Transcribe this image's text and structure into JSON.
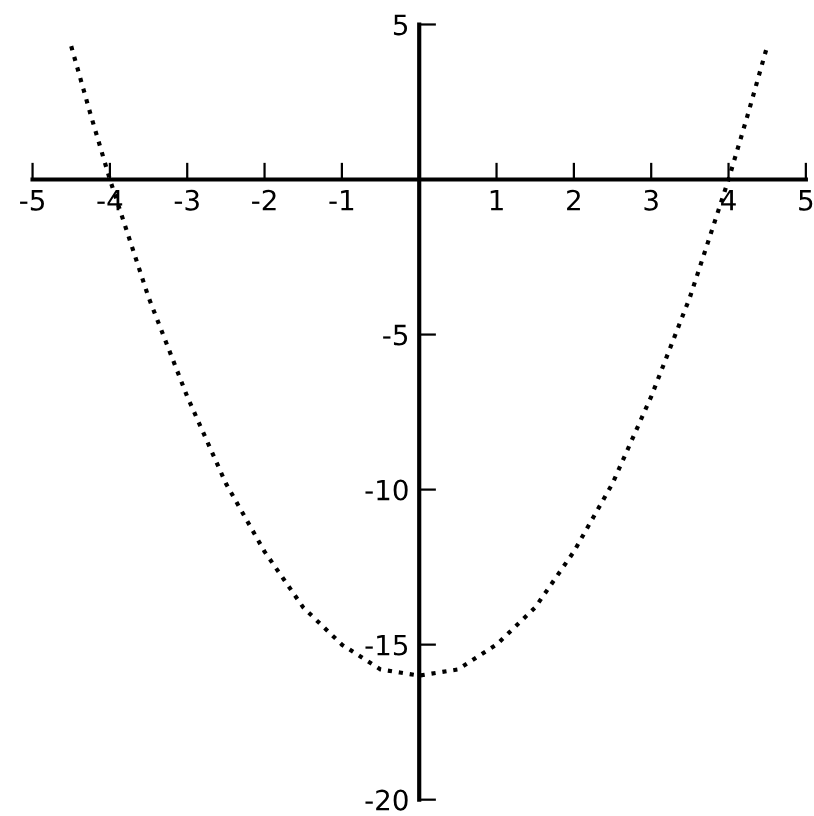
{
  "chart_data": {
    "type": "line",
    "x": [
      -4.5,
      -4.25,
      -4,
      -3.75,
      -3.5,
      -3.25,
      -3,
      -2.75,
      -2.5,
      -2.25,
      -2,
      -1.75,
      -1.5,
      -1.25,
      -1,
      -0.75,
      -0.5,
      -0.25,
      0,
      0.25,
      0.5,
      0.75,
      1,
      1.25,
      1.5,
      1.75,
      2,
      2.25,
      2.5,
      2.75,
      3,
      3.25,
      3.5,
      3.75,
      4,
      4.25,
      4.5
    ],
    "series": [
      {
        "color": "#000000",
        "values": [
          4.3,
          2.1,
          0,
          -1.9,
          -3.8,
          -5.4,
          -7,
          -8.4,
          -9.8,
          -10.9,
          -12,
          -12.9,
          -13.8,
          -14.4,
          -15,
          -15.4,
          -15.8,
          -15.9,
          -16,
          -15.9,
          -15.8,
          -15.4,
          -15,
          -14.4,
          -13.8,
          -12.9,
          -12,
          -10.9,
          -9.8,
          -8.4,
          -7,
          -5.4,
          -3.8,
          -1.9,
          0,
          2.1,
          4.3
        ]
      }
    ],
    "xlim": [
      -5,
      5
    ],
    "ylim": [
      -20,
      5
    ],
    "xticks": [
      -5,
      -4,
      -3,
      -2,
      -1,
      1,
      2,
      3,
      4,
      5
    ],
    "yticks": [
      -20,
      -15,
      -10,
      -5,
      5
    ],
    "line_style": "dotted",
    "marker": "none",
    "grid": false,
    "legend": false
  }
}
